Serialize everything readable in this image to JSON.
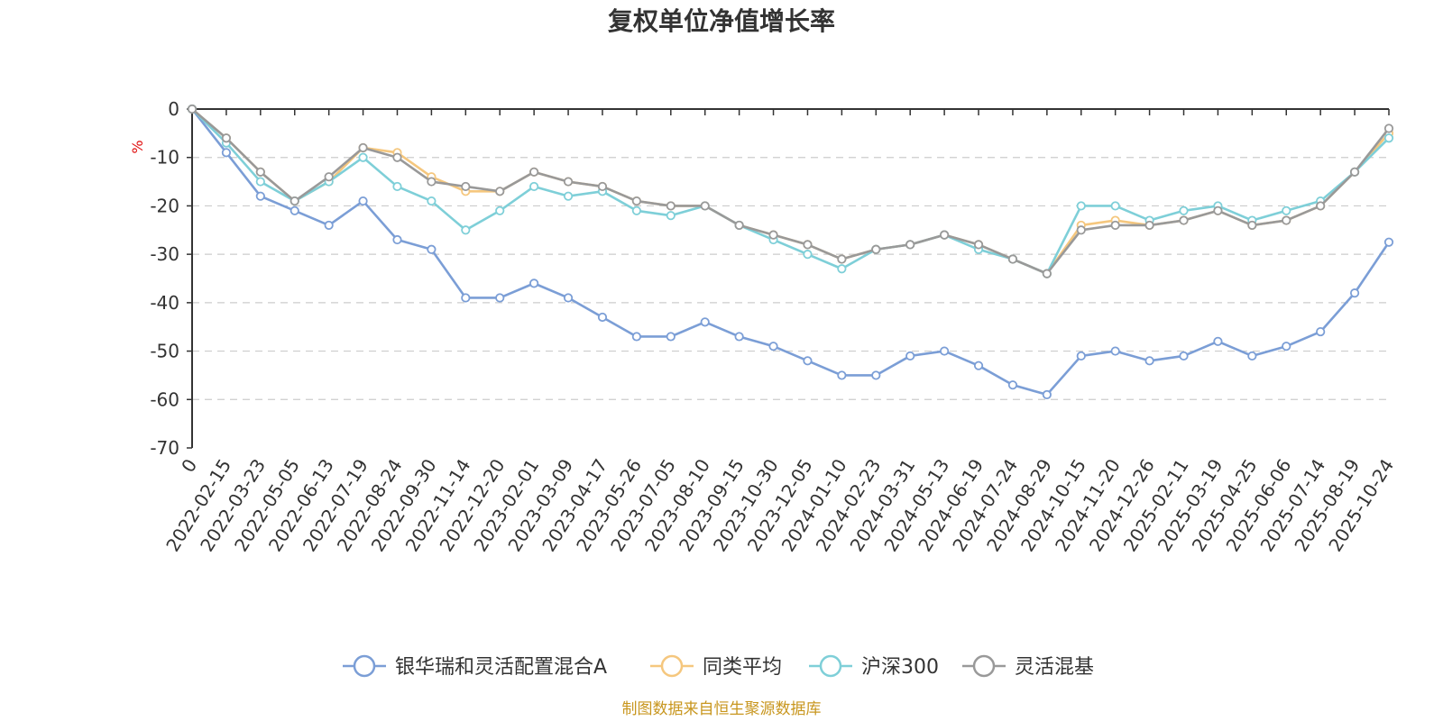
{
  "chart_data": {
    "type": "line",
    "title": "复权单位净值增长率",
    "ylabel": "%",
    "ylim": [
      -70,
      0
    ],
    "yticks": [
      0,
      -10,
      -20,
      -30,
      -40,
      -50,
      -60,
      -70
    ],
    "categories": [
      "0",
      "2022-02-15",
      "2022-03-23",
      "2022-05-05",
      "2022-06-13",
      "2022-07-19",
      "2022-08-24",
      "2022-09-30",
      "2022-11-14",
      "2022-12-20",
      "2023-02-01",
      "2023-03-09",
      "2023-04-17",
      "2023-05-26",
      "2023-07-05",
      "2023-08-10",
      "2023-09-15",
      "2023-10-30",
      "2023-12-05",
      "2024-01-10",
      "2024-02-23",
      "2024-03-31",
      "2024-05-13",
      "2024-06-19",
      "2024-07-24",
      "2024-08-29",
      "2024-10-15",
      "2024-11-20",
      "2024-12-26",
      "2025-02-11",
      "2025-03-19",
      "2025-04-25",
      "2025-06-06",
      "2025-07-14",
      "2025-08-19",
      "2025-10-24"
    ],
    "series": [
      {
        "name": "银华瑞和灵活配置混合A",
        "color": "#7b9ed6",
        "values": [
          0,
          -9,
          -18,
          -21,
          -24,
          -19,
          -27,
          -29,
          -39,
          -39,
          -36,
          -39,
          -43,
          -47,
          -47,
          -44,
          -47,
          -49,
          -52,
          -55,
          -55,
          -51,
          -50,
          -53,
          -57,
          -59,
          -51,
          -50,
          -52,
          -51,
          -48,
          -51,
          -49,
          -46,
          -38,
          -27.5
        ]
      },
      {
        "name": "同类平均",
        "color": "#f5c77e",
        "values": [
          0,
          -6,
          -13,
          -19,
          -15,
          -8,
          -9,
          -14,
          -17,
          -17,
          -13,
          -15,
          -16,
          -19,
          -20,
          -20,
          -24,
          -26,
          -28,
          -31,
          -29,
          -28,
          -26,
          -28,
          -31,
          -34,
          -24,
          -23,
          -24,
          -23,
          -21,
          -24,
          -23,
          -20,
          -13,
          -5
        ]
      },
      {
        "name": "沪深300",
        "color": "#7ecfd8",
        "values": [
          0,
          -7,
          -15,
          -19,
          -15,
          -10,
          -16,
          -19,
          -25,
          -21,
          -16,
          -18,
          -17,
          -21,
          -22,
          -20,
          -24,
          -27,
          -30,
          -33,
          -29,
          -28,
          -26,
          -29,
          -31,
          -34,
          -20,
          -20,
          -23,
          -21,
          -20,
          -23,
          -21,
          -19,
          -13,
          -6
        ]
      },
      {
        "name": "灵活混基",
        "color": "#999999",
        "values": [
          0,
          -6,
          -13,
          -19,
          -14,
          -8,
          -10,
          -15,
          -16,
          -17,
          -13,
          -15,
          -16,
          -19,
          -20,
          -20,
          -24,
          -26,
          -28,
          -31,
          -29,
          -28,
          -26,
          -28,
          -31,
          -34,
          -25,
          -24,
          -24,
          -23,
          -21,
          -24,
          -23,
          -20,
          -13,
          -4
        ]
      }
    ]
  },
  "legend": [
    "银华瑞和灵活配置混合A",
    "同类平均",
    "沪深300",
    "灵活混基"
  ],
  "source": "制图数据来自恒生聚源数据库"
}
